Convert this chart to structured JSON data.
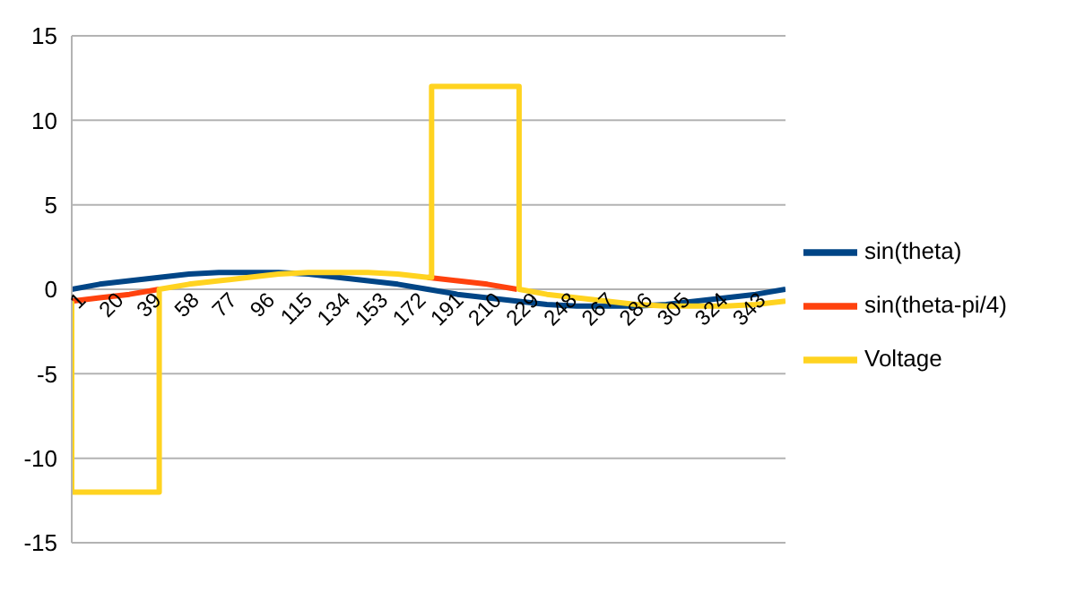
{
  "chart_data": {
    "type": "line",
    "xlim": [
      1,
      360
    ],
    "xticks": [
      1,
      20,
      39,
      58,
      77,
      96,
      115,
      134,
      153,
      172,
      191,
      210,
      229,
      248,
      267,
      286,
      305,
      324,
      343
    ],
    "ylim": [
      -15,
      15
    ],
    "yticks": [
      -15,
      -10,
      -5,
      0,
      5,
      10,
      15
    ],
    "grid": "y",
    "legend": "right",
    "marker": "none",
    "line_style": "solid",
    "series": [
      {
        "name": "sin(theta)",
        "color": "#004586",
        "x": [
          1,
          15,
          30,
          45,
          60,
          75,
          90,
          105,
          120,
          135,
          150,
          165,
          180,
          195,
          210,
          225,
          240,
          255,
          270,
          285,
          300,
          315,
          330,
          345,
          360
        ],
        "values": [
          0,
          0.3,
          0.5,
          0.7,
          0.9,
          1,
          1,
          1,
          0.9,
          0.7,
          0.5,
          0.3,
          0,
          -0.3,
          -0.5,
          -0.7,
          -0.9,
          -1,
          -1,
          -1,
          -0.9,
          -0.7,
          -0.5,
          -0.3,
          0
        ]
      },
      {
        "name": "sin(theta-pi/4)",
        "color": "#ff420e",
        "x": [
          1,
          15,
          30,
          45,
          60,
          75,
          90,
          105,
          120,
          135,
          150,
          165,
          180,
          195,
          210,
          225
        ],
        "values": [
          -0.7,
          -0.5,
          -0.3,
          0,
          null,
          null,
          null,
          null,
          null,
          null,
          null,
          null,
          0.7,
          0.5,
          0.3,
          0
        ]
      },
      {
        "name": "Voltage",
        "color": "#ffd320",
        "x": [
          1,
          1,
          45,
          45,
          60,
          75,
          90,
          105,
          120,
          135,
          150,
          165,
          180,
          182,
          182,
          226,
          226,
          240,
          255,
          270,
          285,
          300,
          315,
          330,
          345,
          360
        ],
        "values": [
          -0.7,
          -12,
          -12,
          0,
          0.3,
          0.5,
          0.7,
          0.9,
          1,
          1,
          1,
          0.9,
          0.7,
          0.7,
          12,
          12,
          0,
          -0.3,
          -0.5,
          -0.7,
          -0.9,
          -1,
          -1,
          -1,
          -0.9,
          -0.7
        ]
      }
    ]
  }
}
